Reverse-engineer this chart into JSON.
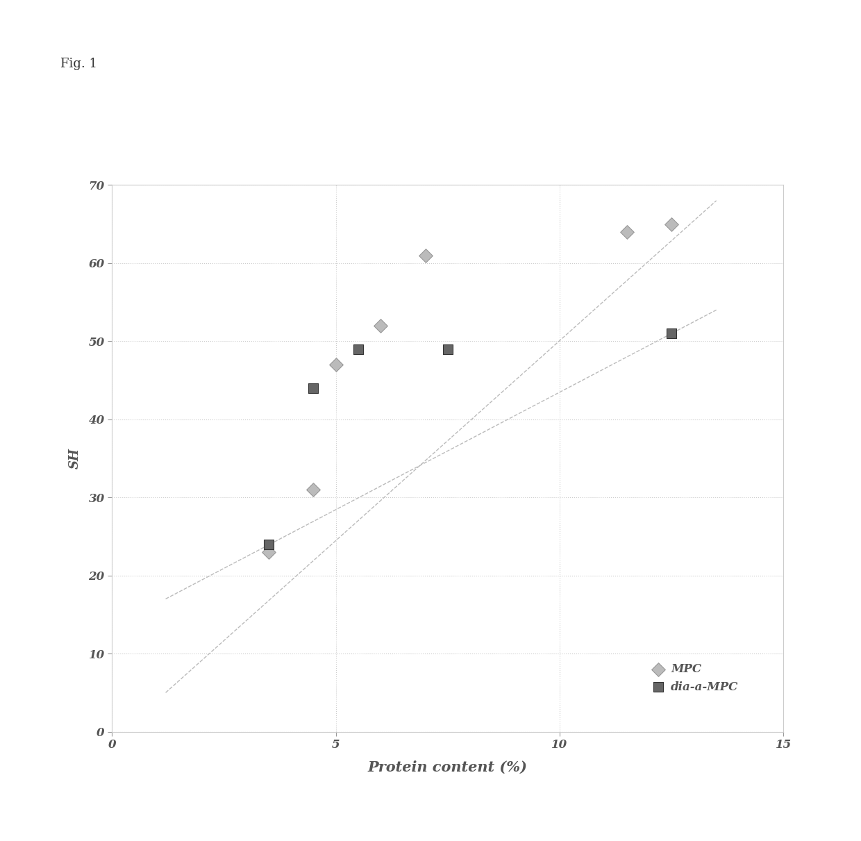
{
  "mpc_x": [
    3.5,
    4.5,
    5.0,
    6.0,
    7.0,
    11.5,
    12.5
  ],
  "mpc_y": [
    23,
    31,
    47,
    52,
    61,
    64,
    65
  ],
  "dia_x": [
    3.5,
    4.5,
    5.5,
    7.5,
    12.5
  ],
  "dia_y": [
    24,
    44,
    49,
    49,
    51
  ],
  "mpc_trend_x": [
    1.2,
    13.5
  ],
  "mpc_trend_y": [
    5.0,
    68.0
  ],
  "dia_trend_x": [
    1.2,
    13.5
  ],
  "dia_trend_y": [
    17.0,
    54.0
  ],
  "xlabel": "Protein content (%)",
  "ylabel": "SH",
  "xlim": [
    0,
    15
  ],
  "ylim": [
    0,
    70
  ],
  "xticks": [
    0,
    5,
    10,
    15
  ],
  "yticks": [
    0,
    10,
    20,
    30,
    40,
    50,
    60,
    70
  ],
  "legend_mpc": "MPC",
  "legend_dia": "dia-a-MPC",
  "fig_label": "Fig. 1",
  "bg_color": "#f5f5f5",
  "plot_bg_color": "#f0f0f0",
  "grid_color": "#cccccc",
  "mpc_marker_color": "#bbbbbb",
  "mpc_edge_color": "#999999",
  "dia_marker_color": "#666666",
  "dia_edge_color": "#333333",
  "trendline_color": "#bbbbbb",
  "marker_size": 100,
  "xlabel_fontsize": 15,
  "ylabel_fontsize": 13,
  "tick_fontsize": 12,
  "legend_fontsize": 12,
  "fig_label_fontsize": 13
}
